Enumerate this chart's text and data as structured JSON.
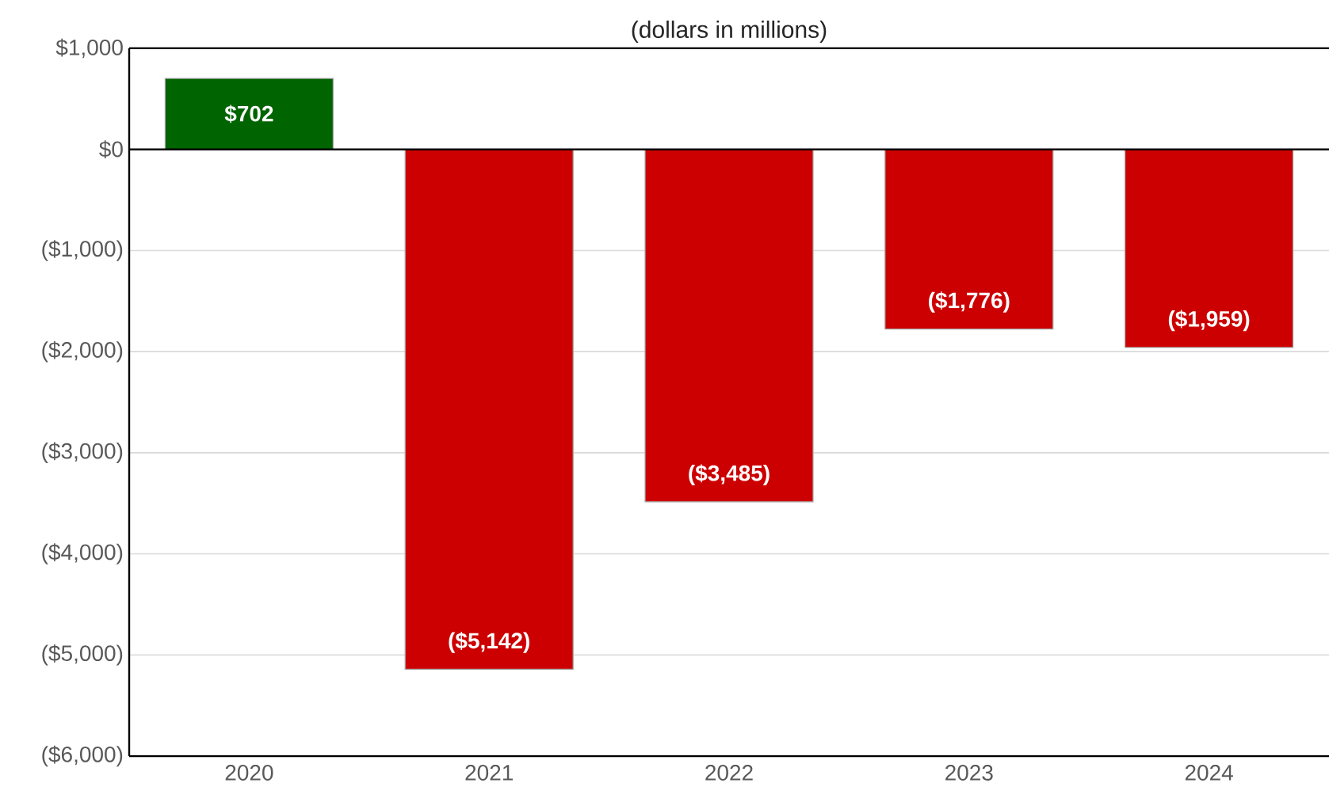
{
  "chart_data": {
    "type": "bar",
    "title": "(dollars in millions)",
    "categories": [
      "2020",
      "2021",
      "2022",
      "2023",
      "2024"
    ],
    "values": [
      702,
      -5142,
      -3485,
      -1776,
      -1959
    ],
    "colors": [
      "#006400",
      "#cc0000",
      "#cc0000",
      "#cc0000",
      "#cc0000"
    ],
    "value_labels": [
      "$702",
      "($5,142)",
      "($3,485)",
      "($1,776)",
      "($1,959)"
    ],
    "ylim": [
      -6000,
      1000
    ],
    "yticks": [
      {
        "value": -6000,
        "label": "($6,000)"
      },
      {
        "value": -5000,
        "label": "($5,000)"
      },
      {
        "value": -4000,
        "label": "($4,000)"
      },
      {
        "value": -3000,
        "label": "($3,000)"
      },
      {
        "value": -2000,
        "label": "($2,000)"
      },
      {
        "value": -1000,
        "label": "($1,000)"
      },
      {
        "value": 0,
        "label": "$0"
      },
      {
        "value": 1000,
        "label": "$1,000"
      }
    ],
    "grid": "y"
  }
}
